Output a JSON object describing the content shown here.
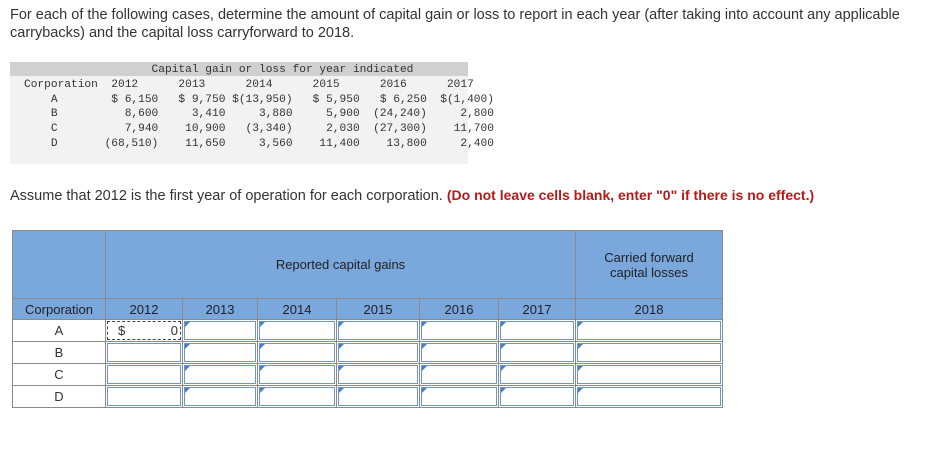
{
  "instructions": "For each of the following cases, determine the amount of capital gain or loss to report in each year (after taking into account any applicable carrybacks) and the capital loss carryforward to 2018.",
  "given_table": {
    "title": "Capital gain or loss for year indicated",
    "header_label": "Corporation",
    "years": [
      "2012",
      "2013",
      "2014",
      "2015",
      "2016",
      "2017"
    ],
    "rows": [
      {
        "corp": "A",
        "values": [
          "$ 6,150",
          "$ 9,750",
          "$(13,950)",
          "$ 5,950",
          "$ 6,250",
          "$(1,400)"
        ]
      },
      {
        "corp": "B",
        "values": [
          "8,600",
          "3,410",
          "3,880",
          "5,900",
          "(24,240)",
          "2,800"
        ]
      },
      {
        "corp": "C",
        "values": [
          "7,940",
          "10,900",
          "(3,340)",
          "2,030",
          "(27,300)",
          "11,700"
        ]
      },
      {
        "corp": "D",
        "values": [
          "(68,510)",
          "11,650",
          "3,560",
          "11,400",
          "13,800",
          "2,400"
        ]
      }
    ]
  },
  "assumption": "Assume that 2012 is the first year of operation for each corporation.",
  "assumption_note": "(Do not leave cells blank, enter \"0\" if there is no effect.)",
  "answer_table": {
    "reported_header": "Reported capital gains",
    "carried_header": "Carried forward capital losses",
    "corp_header": "Corporation",
    "years": [
      "2012",
      "2013",
      "2014",
      "2015",
      "2016",
      "2017"
    ],
    "carry_year": "2018",
    "corps": [
      "A",
      "B",
      "C",
      "D"
    ],
    "currency_symbol": "$",
    "first_cell_value": "0"
  }
}
